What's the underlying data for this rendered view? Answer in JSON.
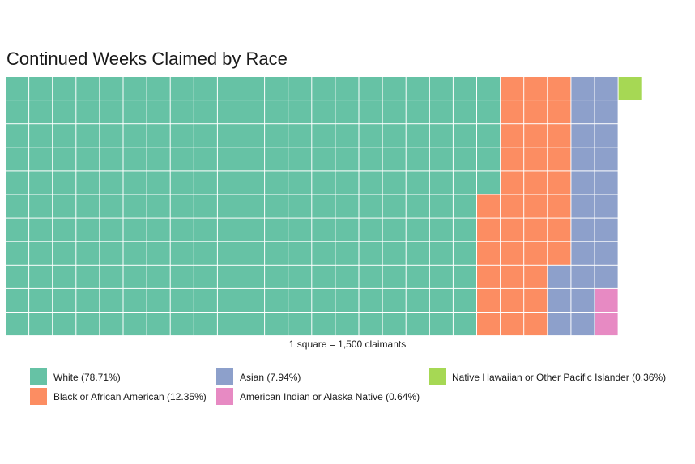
{
  "chart_data": {
    "type": "waffle",
    "title": "Continued Weeks Claimed by Race",
    "caption": "1 square = 1,500 claimants",
    "rows": 11,
    "series": [
      {
        "name": "White (78.71%)",
        "squares": 225,
        "color": "#66C2A5"
      },
      {
        "name": "Black or African American (12.35%)",
        "squares": 36,
        "color": "#FC8D62"
      },
      {
        "name": "Asian (7.94%)",
        "squares": 23,
        "color": "#8DA0CB"
      },
      {
        "name": "American Indian or Alaska Native (0.64%)",
        "squares": 2,
        "color": "#E78AC3"
      },
      {
        "name": "Native Hawaiian or Other Pacific Islander (0.36%)",
        "squares": 1,
        "color": "#A6D854"
      }
    ],
    "legend": [
      {
        "label": "White (78.71%)",
        "color": "#66C2A5"
      },
      {
        "label": "Black or African American (12.35%)",
        "color": "#FC8D62"
      },
      {
        "label": "Asian (7.94%)",
        "color": "#8DA0CB"
      },
      {
        "label": "American Indian or Alaska Native (0.64%)",
        "color": "#E78AC3"
      },
      {
        "label": "Native Hawaiian or Other Pacific Islander (0.36%)",
        "color": "#A6D854"
      }
    ]
  }
}
